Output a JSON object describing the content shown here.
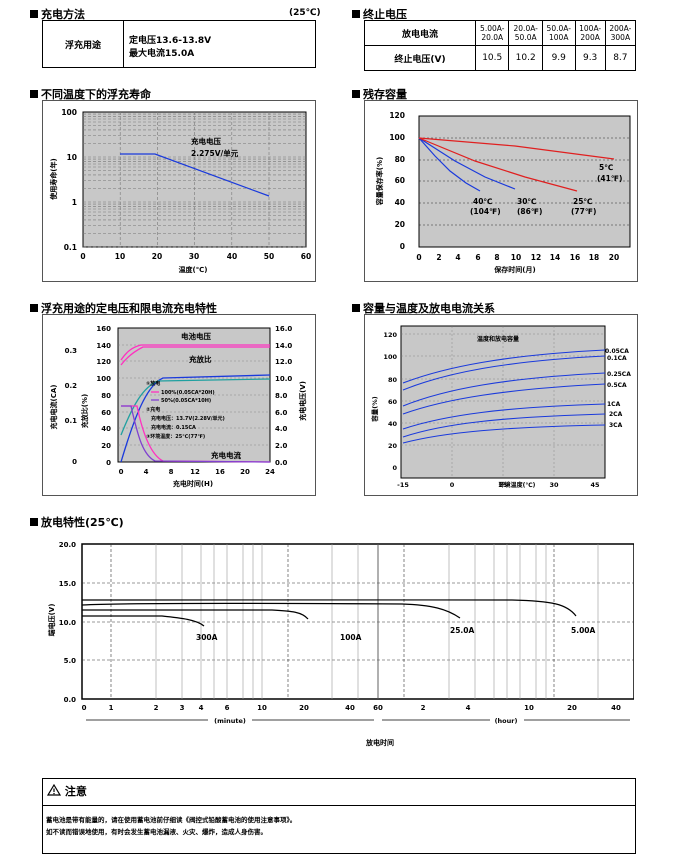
{
  "charging": {
    "title": "充电方法",
    "temp": "(25℃)",
    "usage": "浮充用途",
    "line1": "定电压13.6-13.8V",
    "line2": "最大电流15.0A"
  },
  "endvoltage": {
    "title": "终止电压",
    "row1_label": "放电电流",
    "row2_label": "终止电压(V)",
    "ranges": [
      "5.00A-20.0A",
      "20.0A-50.0A",
      "50.0A-100A",
      "100A-200A",
      "200A-300A"
    ],
    "values": [
      "10.5",
      "10.2",
      "9.9",
      "9.3",
      "8.7"
    ]
  },
  "float_life": {
    "title": "不同温度下的浮充寿命",
    "annotation1": "充电电压",
    "annotation2": "2.275V/单元",
    "ylabel": "使用寿命(年)",
    "xlabel": "温度(℃)",
    "y_ticks": [
      "100",
      "10",
      "1",
      "0.1"
    ],
    "x_ticks": [
      "0",
      "10",
      "20",
      "30",
      "40",
      "50",
      "60"
    ]
  },
  "residual": {
    "title": "残存容量",
    "ylabel": "容量保存率(%)",
    "xlabel": "保存时间(月)",
    "y_ticks": [
      "0",
      "20",
      "40",
      "60",
      "80",
      "100",
      "120"
    ],
    "x_ticks": [
      "0",
      "2",
      "4",
      "6",
      "8",
      "10",
      "12",
      "14",
      "16",
      "18",
      "20"
    ],
    "labels": {
      "c40a": "40℃",
      "c40b": "(104℉)",
      "c30a": "30℃",
      "c30b": "(86℉)",
      "c25a": "25℃",
      "c25b": "(77℉)",
      "c5a": "5℃",
      "c5b": "(41℉)"
    }
  },
  "float_charge": {
    "title": "浮充用途的定电压和限电流充电特性",
    "left_axis_ca": "充电电流(CA)",
    "left_axis_ratio": "充放比(%)",
    "right_axis": "充电电压(V)",
    "xlabel": "充电时间(H)",
    "ca_ticks": [
      "0.3",
      "0.2",
      "0.1",
      "0"
    ],
    "ratio_ticks": [
      "160",
      "140",
      "120",
      "100",
      "80",
      "60",
      "40",
      "20",
      "0"
    ],
    "volt_ticks": [
      "16.0",
      "14.0",
      "12.0",
      "10.0",
      "8.0",
      "6.0",
      "4.0",
      "2.0",
      "0.0"
    ],
    "x_ticks": [
      "0",
      "4",
      "8",
      "12",
      "16",
      "20",
      "24"
    ],
    "label_voltage": "电池电压",
    "label_ratio": "充放比",
    "label_current": "充电电流",
    "legend": {
      "discharge": "①放电",
      "d1": "100%(0.05CA*20H)",
      "d2": "50%(0.05CA*10H)",
      "charge": "②充电",
      "c1": "充电电压：13.7V(2.28V/单元)",
      "c2": "充电电流：0.15CA",
      "c3": "③环境温度：25℃(77℉)"
    }
  },
  "capacity_temp": {
    "title": "容量与温度及放电电流关系",
    "inner_title": "温度和放电容量",
    "ylabel": "容量(%)",
    "xlabel": "环境温度(℃)",
    "y_ticks": [
      "0",
      "20",
      "40",
      "60",
      "80",
      "100",
      "120"
    ],
    "x_ticks": [
      "-15",
      "0",
      "15",
      "30",
      "45"
    ],
    "series_labels": [
      "0.05CA",
      "0.1CA",
      "0.25CA",
      "0.5CA",
      "1CA",
      "2CA",
      "3CA"
    ]
  },
  "discharge": {
    "title": "放电特性(25℃)",
    "ylabel": "端电压(V)",
    "xlabel": "放电时间",
    "y_ticks": [
      "20.0",
      "15.0",
      "10.0",
      "5.0",
      "0.0"
    ],
    "minute_ticks": [
      "0",
      "1",
      "2",
      "3",
      "4",
      "6",
      "10",
      "20",
      "40",
      "60"
    ],
    "hour_ticks": [
      "2",
      "4",
      "10",
      "20",
      "40"
    ],
    "minute_label": "(minute)",
    "hour_label": "(hour)",
    "curve_labels": [
      "300A",
      "100A",
      "25.0A",
      "5.00A"
    ]
  },
  "notice": {
    "title": "注意",
    "line1": "蓄电池是带有能量的，请在使用蓄电池前仔细读《阀控式铅酸蓄电池的使用注意事项》。",
    "line2": "如不读而错误地使用，有时会发生蓄电池漏液、火灾、爆炸，造成人身伤害。"
  }
}
